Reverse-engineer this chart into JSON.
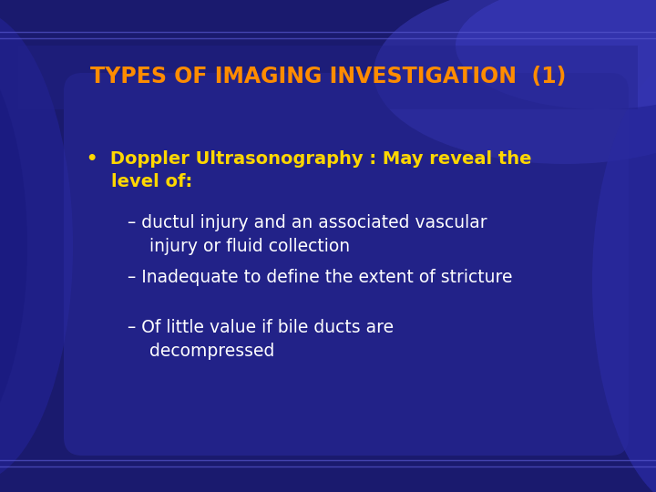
{
  "title": "TYPES OF IMAGING INVESTIGATION  (1)",
  "title_color": "#FF8C00",
  "title_fontsize": 17,
  "bg_color_dark": "#1a1a6e",
  "bullet_color": "#FFD700",
  "sub_bullet_color": "#FFFFFF",
  "bullet_text_line1": "•  Doppler Ultrasonography : May reveal the",
  "bullet_text_line2": "    level of:",
  "sub_bullets": [
    "– ductul injury and an associated vascular\n    injury or fluid collection",
    "– Inadequate to define the extent of stricture",
    "– Of little value if bile ducts are\n    decompressed"
  ],
  "bullet_fontsize": 14,
  "sub_bullet_fontsize": 13.5
}
